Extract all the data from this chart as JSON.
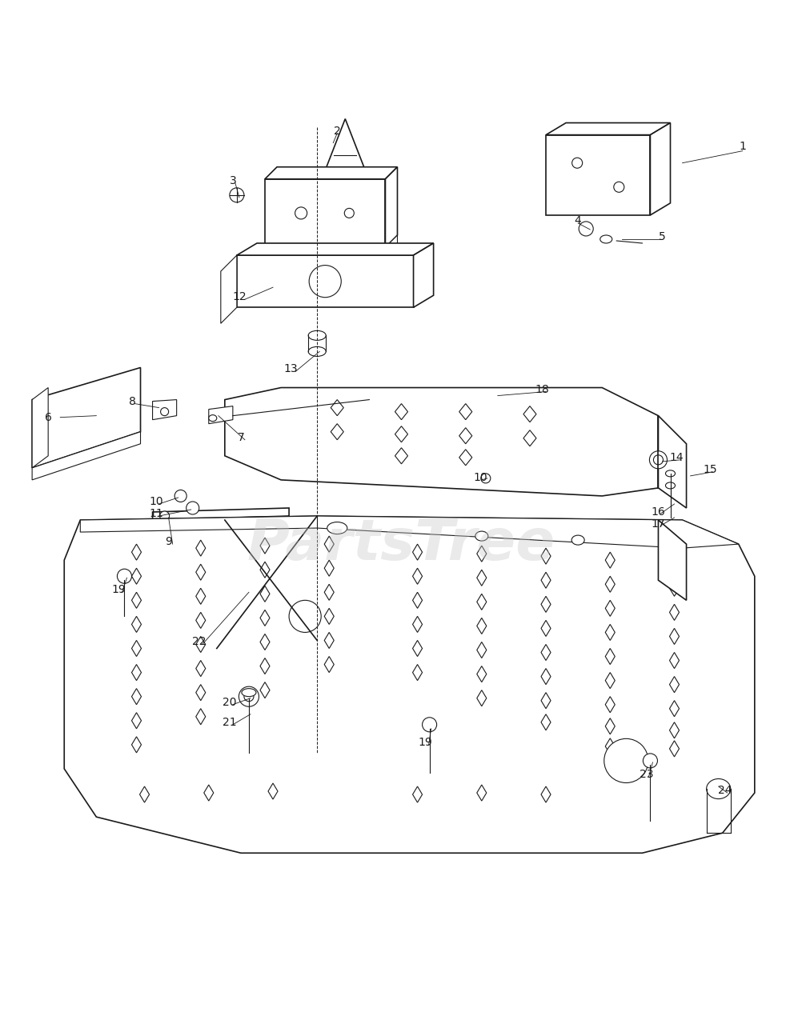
{
  "bg_color": "#ffffff",
  "line_color": "#1a1a1a",
  "watermark_color": "#c8c8c8",
  "watermark_text": "PartsTree",
  "watermark_alpha": 0.38,
  "fig_width": 10.03,
  "fig_height": 12.8,
  "dpi": 100
}
